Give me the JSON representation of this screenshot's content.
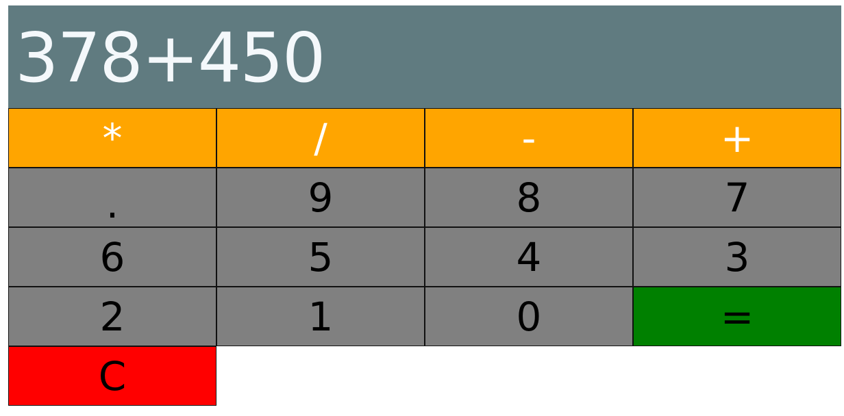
{
  "display": {
    "expression": "378+450"
  },
  "operators": [
    "*",
    "/",
    "-",
    "+"
  ],
  "rows": [
    [
      ".",
      "9",
      "8",
      "7"
    ],
    [
      "6",
      "5",
      "4",
      "3"
    ],
    [
      "2",
      "1",
      "0",
      "="
    ]
  ],
  "clear_label": "C",
  "colors": {
    "display_bg": "#607b80",
    "operator_bg": "#ffa500",
    "number_bg": "#808080",
    "equals_bg": "#008000",
    "clear_bg": "#ff0000"
  }
}
